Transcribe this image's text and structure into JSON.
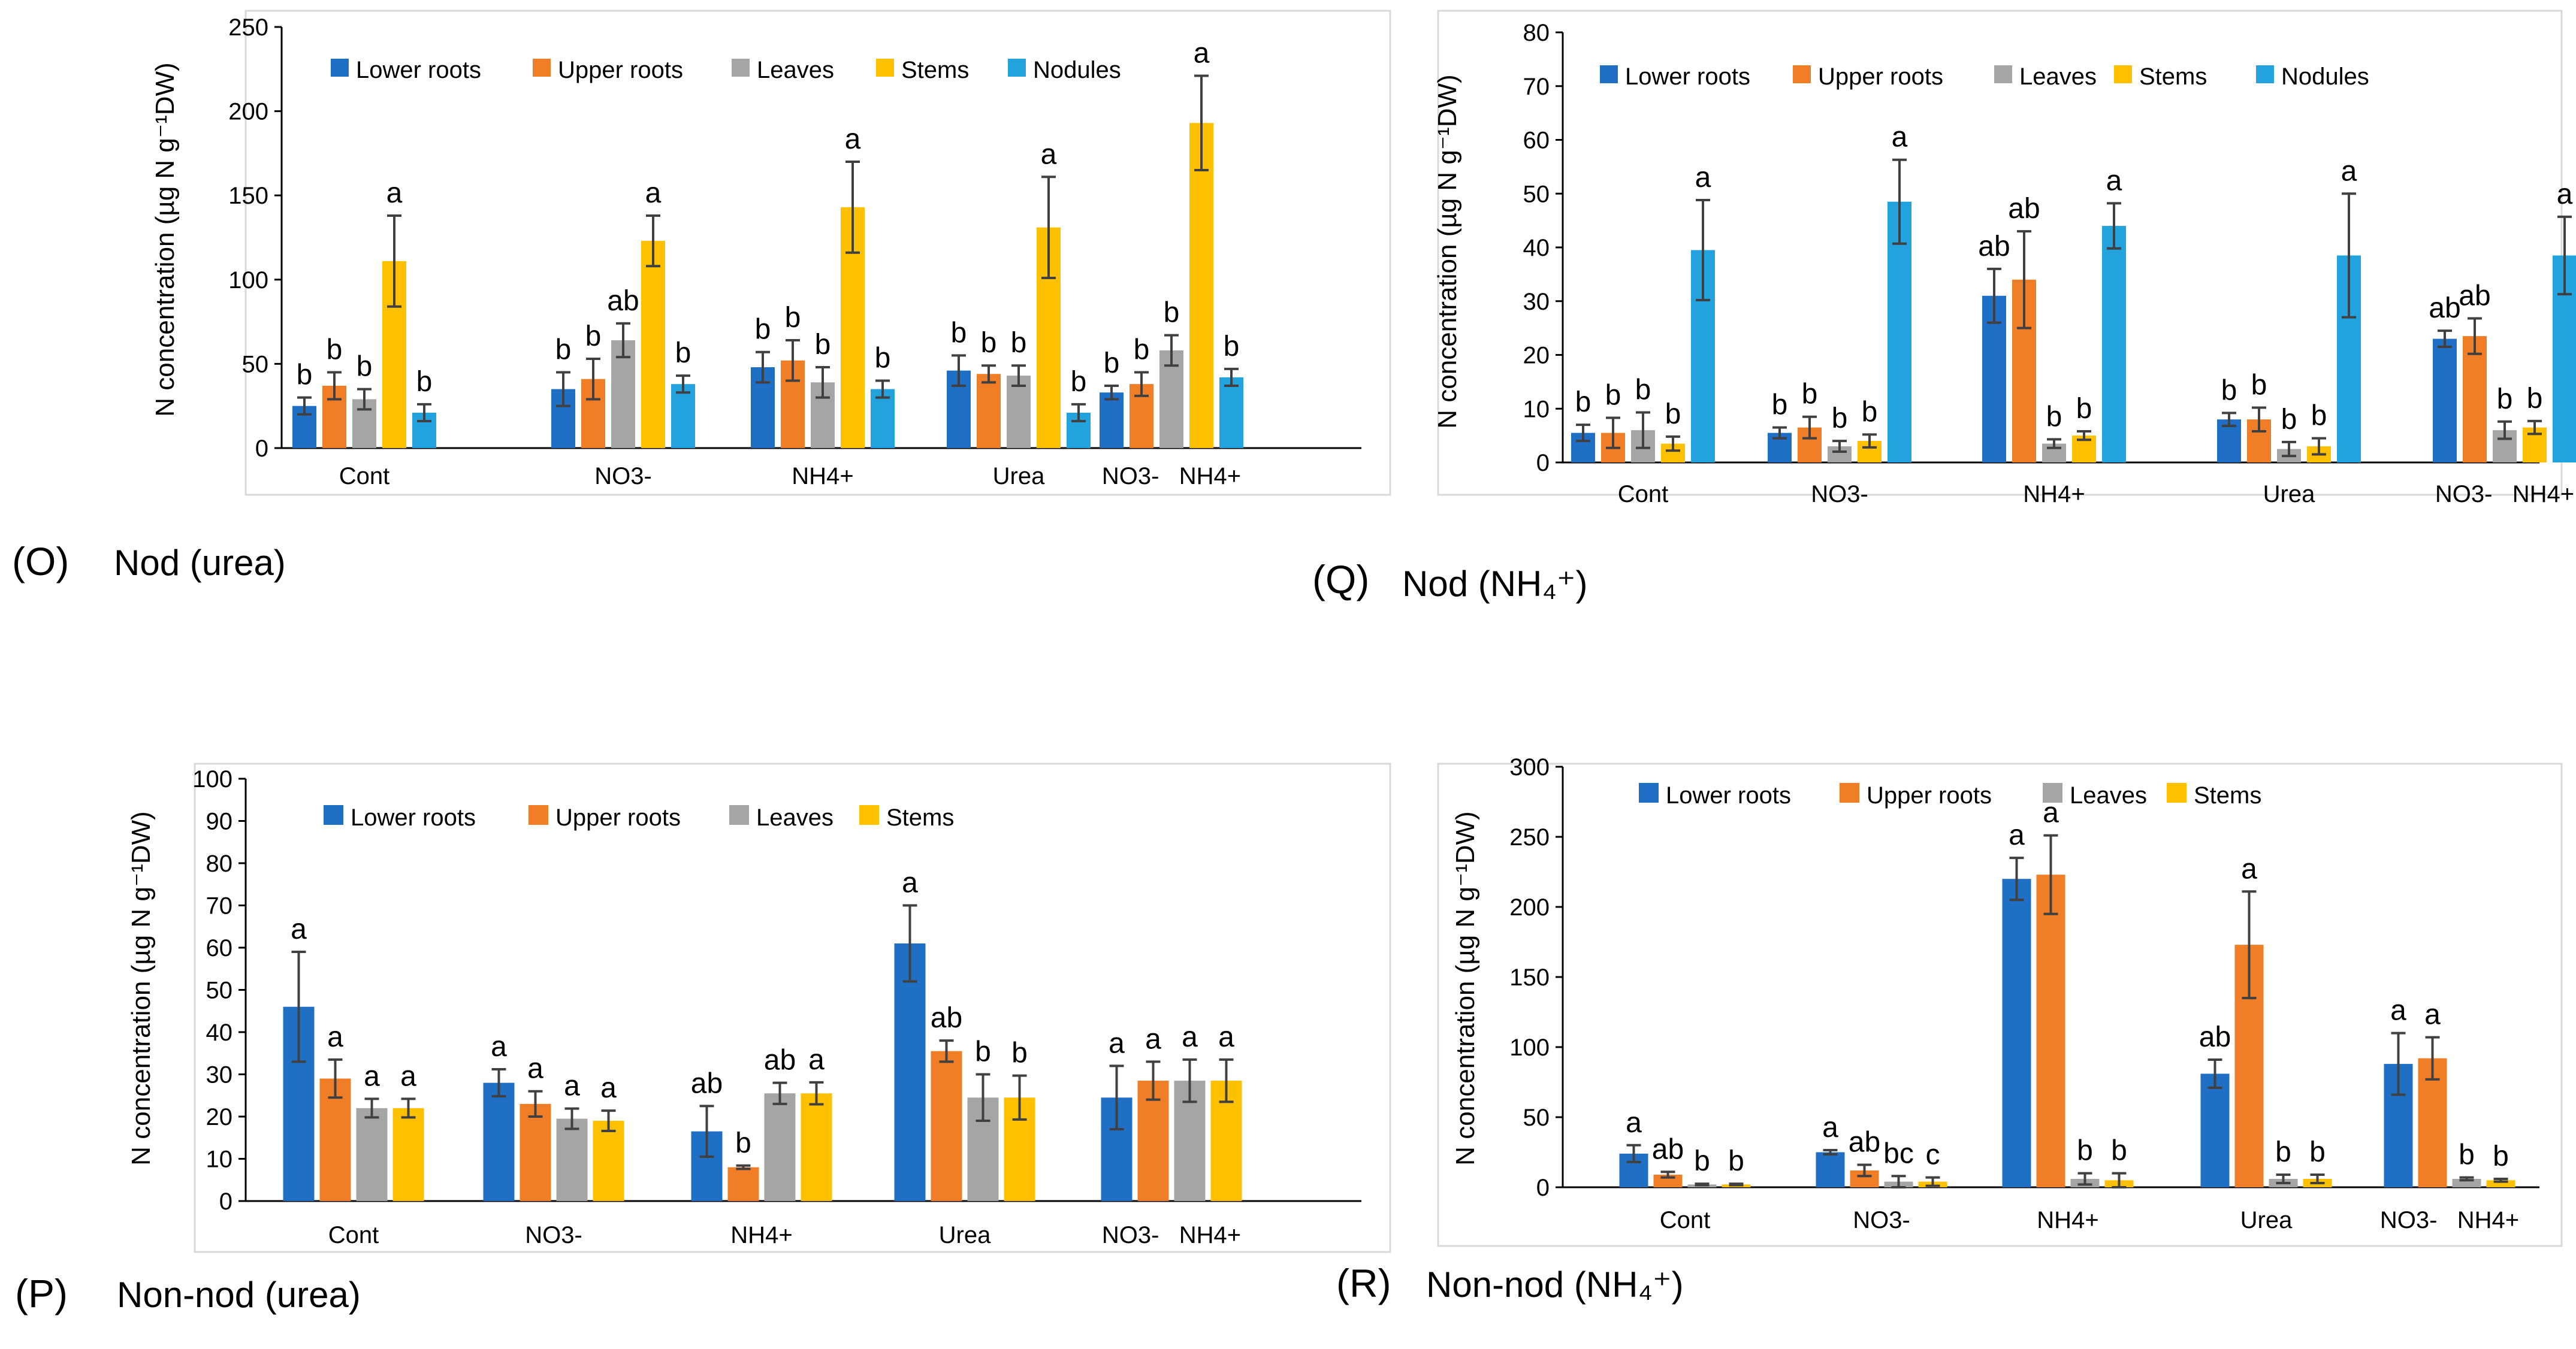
{
  "colors": {
    "lower_roots": "#1F6FC5",
    "upper_roots": "#F07E26",
    "leaves": "#A5A5A5",
    "stems": "#FFC000",
    "nodules": "#23A3DD",
    "error_bar": "#404040",
    "axis": "#000000",
    "frame": "#D9D9D9"
  },
  "chart_data": [
    {
      "panel": "O",
      "panel_letter": "(O)",
      "title": "Nod (urea)",
      "type": "bar",
      "ylabel": "N concentration (µg N g⁻¹DW)",
      "ylim": [
        0,
        250
      ],
      "yticks": [
        0,
        50,
        100,
        150,
        200,
        250
      ],
      "categories": [
        "Cont",
        "NO3-",
        "NH4+",
        "Urea",
        "NO3-   NH4+"
      ],
      "series": [
        {
          "name": "Lower roots",
          "color_key": "lower_roots",
          "values": [
            25,
            35,
            48,
            46,
            33
          ],
          "errors": [
            5,
            10,
            9,
            9,
            4
          ],
          "letters": [
            "b",
            "b",
            "b",
            "b",
            "b"
          ]
        },
        {
          "name": "Upper roots",
          "color_key": "upper_roots",
          "values": [
            37,
            41,
            52,
            44,
            38
          ],
          "errors": [
            8,
            12,
            12,
            5,
            7
          ],
          "letters": [
            "b",
            "b",
            "b",
            "b",
            "b"
          ]
        },
        {
          "name": "Leaves",
          "color_key": "leaves",
          "values": [
            29,
            64,
            39,
            43,
            58
          ],
          "errors": [
            6,
            10,
            9,
            6,
            9
          ],
          "letters": [
            "b",
            "ab",
            "b",
            "b",
            "b"
          ]
        },
        {
          "name": "Stems",
          "color_key": "stems",
          "values": [
            111,
            123,
            143,
            131,
            193
          ],
          "errors": [
            27,
            15,
            27,
            30,
            28
          ],
          "letters": [
            "a",
            "a",
            "a",
            "a",
            "a"
          ]
        },
        {
          "name": "Nodules",
          "color_key": "nodules",
          "values": [
            21,
            38,
            35,
            21,
            42
          ],
          "errors": [
            5,
            5,
            5,
            5,
            5
          ],
          "letters": [
            "b",
            "b",
            "b",
            "b",
            "b"
          ]
        }
      ]
    },
    {
      "panel": "Q",
      "panel_letter": "(Q)",
      "title": "Nod (NH₄⁺)",
      "type": "bar",
      "ylabel": "N concentration (µg N g⁻¹DW)",
      "ylim": [
        0,
        80
      ],
      "yticks": [
        0,
        10,
        20,
        30,
        40,
        50,
        60,
        70,
        80
      ],
      "categories": [
        "Cont",
        "NO3-",
        "NH4+",
        "Urea",
        "NO3-   NH4+"
      ],
      "series": [
        {
          "name": "Lower roots",
          "color_key": "lower_roots",
          "values": [
            5.5,
            5.5,
            31,
            8,
            23
          ],
          "errors": [
            1.5,
            1,
            5,
            1.2,
            1.5
          ],
          "letters": [
            "b",
            "b",
            "ab",
            "b",
            "ab"
          ]
        },
        {
          "name": "Upper roots",
          "color_key": "upper_roots",
          "values": [
            5.5,
            6.5,
            34,
            8,
            23.5
          ],
          "errors": [
            2.8,
            2,
            9,
            2.2,
            3.3
          ],
          "letters": [
            "b",
            "b",
            "ab",
            "b",
            "ab"
          ]
        },
        {
          "name": "Leaves",
          "color_key": "leaves",
          "values": [
            6,
            3,
            3.5,
            2.5,
            6
          ],
          "errors": [
            3.3,
            1,
            0.8,
            1.3,
            1.6
          ],
          "letters": [
            "b",
            "b",
            "b",
            "b",
            "b"
          ]
        },
        {
          "name": "Stems",
          "color_key": "stems",
          "values": [
            3.5,
            4,
            5,
            3,
            6.5
          ],
          "errors": [
            1.3,
            1.2,
            0.8,
            1.5,
            1.2
          ],
          "letters": [
            "b",
            "b",
            "b",
            "b",
            "b"
          ]
        },
        {
          "name": "Nodules",
          "color_key": "nodules",
          "values": [
            39.5,
            48.5,
            44,
            38.5,
            38.5
          ],
          "errors": [
            9.3,
            7.8,
            4.2,
            11.5,
            7.2
          ],
          "letters": [
            "a",
            "a",
            "a",
            "a",
            "a"
          ]
        }
      ]
    },
    {
      "panel": "P",
      "panel_letter": "(P)",
      "title": "Non-nod (urea)",
      "type": "bar",
      "ylabel": "N concentration (µg N g⁻¹DW)",
      "ylim": [
        0,
        100
      ],
      "yticks": [
        0,
        10,
        20,
        30,
        40,
        50,
        60,
        70,
        80,
        90,
        100
      ],
      "categories": [
        "Cont",
        "NO3-",
        "NH4+",
        "Urea",
        "NO3-   NH4+"
      ],
      "series": [
        {
          "name": "Lower roots",
          "color_key": "lower_roots",
          "values": [
            46,
            28,
            16.5,
            61,
            24.5
          ],
          "errors": [
            13,
            3.2,
            6,
            9,
            7.5
          ],
          "letters": [
            "a",
            "a",
            "ab",
            "a",
            "a"
          ]
        },
        {
          "name": "Upper roots",
          "color_key": "upper_roots",
          "values": [
            29,
            23,
            8,
            35.5,
            28.5
          ],
          "errors": [
            4.5,
            3,
            0.4,
            2.5,
            4.5
          ],
          "letters": [
            "a",
            "a",
            "b",
            "ab",
            "a"
          ]
        },
        {
          "name": "Leaves",
          "color_key": "leaves",
          "values": [
            22,
            19.5,
            25.5,
            24.5,
            28.5
          ],
          "errors": [
            2.2,
            2.4,
            2.5,
            5.5,
            5
          ],
          "letters": [
            "a",
            "a",
            "ab",
            "b",
            "a"
          ]
        },
        {
          "name": "Stems",
          "color_key": "stems",
          "values": [
            22,
            19,
            25.5,
            24.5,
            28.5
          ],
          "errors": [
            2.2,
            2.4,
            2.6,
            5.2,
            5
          ],
          "letters": [
            "a",
            "a",
            "a",
            "b",
            "a"
          ]
        }
      ]
    },
    {
      "panel": "R",
      "panel_letter": "(R)",
      "title": "Non-nod (NH₄⁺)",
      "type": "bar",
      "ylabel": "N concentration (µg N g⁻¹DW)",
      "ylim": [
        0,
        300
      ],
      "yticks": [
        0,
        50,
        100,
        150,
        200,
        250,
        300
      ],
      "categories": [
        "Cont",
        "NO3-",
        "NH4+",
        "Urea",
        "NO3-   NH4+"
      ],
      "series": [
        {
          "name": "Lower roots",
          "color_key": "lower_roots",
          "values": [
            24,
            25,
            220,
            81,
            88
          ],
          "errors": [
            6,
            1.5,
            15,
            10,
            22
          ],
          "letters": [
            "a",
            "a",
            "a",
            "ab",
            "a"
          ]
        },
        {
          "name": "Upper roots",
          "color_key": "upper_roots",
          "values": [
            9,
            12,
            223,
            173,
            92
          ],
          "errors": [
            2,
            4,
            28,
            38,
            15
          ],
          "letters": [
            "ab",
            "ab",
            "a",
            "a",
            "a"
          ]
        },
        {
          "name": "Leaves",
          "color_key": "leaves",
          "values": [
            2,
            4,
            6,
            6,
            6
          ],
          "errors": [
            0.5,
            4,
            4,
            3,
            1
          ],
          "letters": [
            "b",
            "bc",
            "b",
            "b",
            "b"
          ]
        },
        {
          "name": "Stems",
          "color_key": "stems",
          "values": [
            2,
            4,
            5,
            6,
            5
          ],
          "errors": [
            0.5,
            3,
            5,
            3,
            1
          ],
          "letters": [
            "b",
            "c",
            "b",
            "b",
            "b"
          ]
        }
      ]
    }
  ]
}
